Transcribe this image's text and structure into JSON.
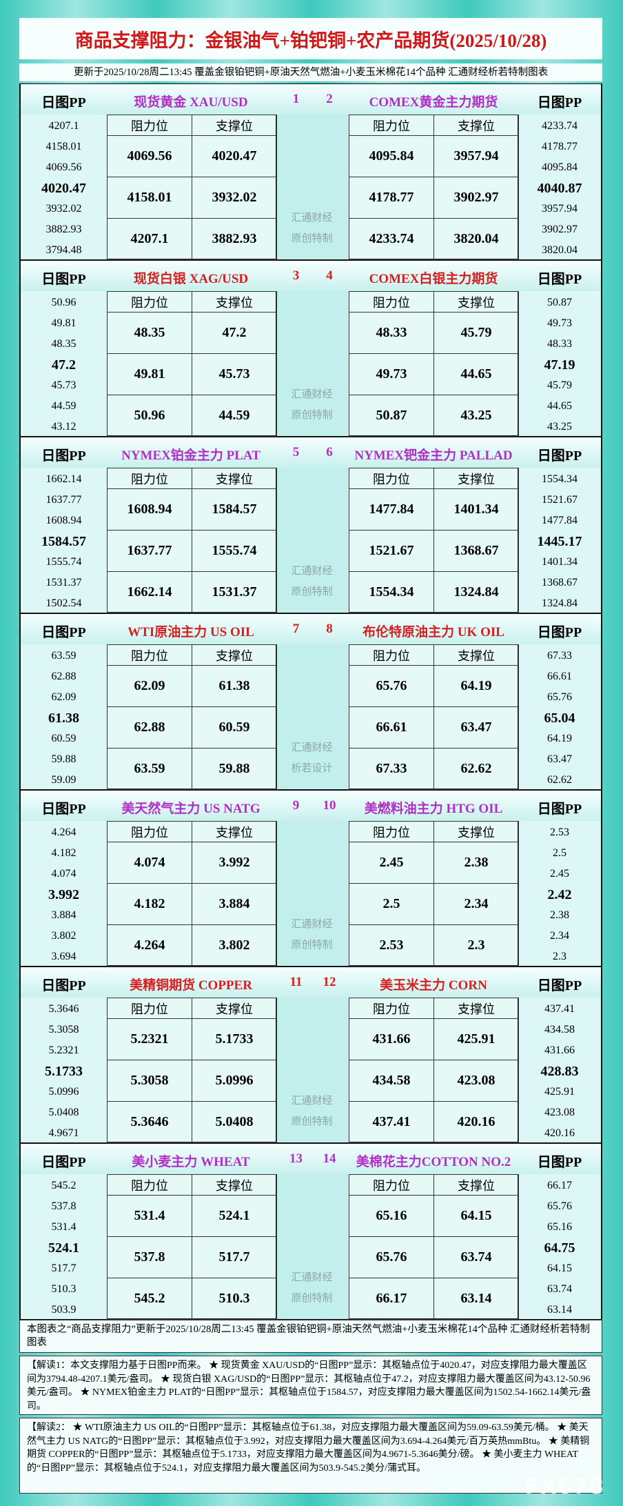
{
  "header": {
    "title": "商品支撑阻力：金银油气+铂钯铜+农产品期货(2025/10/28)",
    "subtitle": "更新于2025/10/28周二13:45 覆盖金银铂钯铜+原油天然气燃油+小麦玉米棉花14个品种 汇通财经析若特制图表"
  },
  "blocks": [
    {
      "left": {
        "pp_label": "日图PP",
        "name": "现货黄金 XAU/USD",
        "number": "1",
        "pp": [
          "4207.1",
          "4158.01",
          "4069.56",
          "4020.47",
          "3932.02",
          "3882.93",
          "3794.48"
        ],
        "table": {
          "headers": [
            "阻力位",
            "支撑位"
          ],
          "rows": [
            [
              "4069.56",
              "4020.47"
            ],
            [
              "4158.01",
              "3932.02"
            ],
            [
              "4207.1",
              "3882.93"
            ]
          ]
        }
      },
      "right": {
        "pp_label": "日图PP",
        "name": "COMEX黄金主力期货",
        "number": "2",
        "pp": [
          "4233.74",
          "4178.77",
          "4095.84",
          "4040.87",
          "3957.94",
          "3902.97",
          "3820.04"
        ],
        "table": {
          "headers": [
            "阻力位",
            "支撑位"
          ],
          "rows": [
            [
              "4095.84",
              "3957.94"
            ],
            [
              "4178.77",
              "3902.97"
            ],
            [
              "4233.74",
              "3820.04"
            ]
          ]
        }
      },
      "stamp": [
        "汇通财经",
        "原创特制"
      ]
    },
    {
      "left": {
        "pp_label": "日图PP",
        "name": "现货白银 XAG/USD",
        "number": "3",
        "pp": [
          "50.96",
          "49.81",
          "48.35",
          "47.2",
          "45.73",
          "44.59",
          "43.12"
        ],
        "table": {
          "headers": [
            "阻力位",
            "支撑位"
          ],
          "rows": [
            [
              "48.35",
              "47.2"
            ],
            [
              "49.81",
              "45.73"
            ],
            [
              "50.96",
              "44.59"
            ]
          ]
        }
      },
      "right": {
        "pp_label": "日图PP",
        "name": "COMEX白银主力期货",
        "number": "4",
        "pp": [
          "50.87",
          "49.73",
          "48.33",
          "47.19",
          "45.79",
          "44.65",
          "43.25"
        ],
        "table": {
          "headers": [
            "阻力位",
            "支撑位"
          ],
          "rows": [
            [
              "48.33",
              "45.79"
            ],
            [
              "49.73",
              "44.65"
            ],
            [
              "50.87",
              "43.25"
            ]
          ]
        }
      },
      "stamp": [
        "汇通财经",
        "原创特制"
      ]
    },
    {
      "left": {
        "pp_label": "日图PP",
        "name": "NYMEX铂金主力 PLAT",
        "number": "5",
        "pp": [
          "1662.14",
          "1637.77",
          "1608.94",
          "1584.57",
          "1555.74",
          "1531.37",
          "1502.54"
        ],
        "table": {
          "headers": [
            "阻力位",
            "支撑位"
          ],
          "rows": [
            [
              "1608.94",
              "1584.57"
            ],
            [
              "1637.77",
              "1555.74"
            ],
            [
              "1662.14",
              "1531.37"
            ]
          ]
        }
      },
      "right": {
        "pp_label": "日图PP",
        "name": "NYMEX钯金主力 PALLAD",
        "number": "6",
        "pp": [
          "1554.34",
          "1521.67",
          "1477.84",
          "1445.17",
          "1401.34",
          "1368.67",
          "1324.84"
        ],
        "table": {
          "headers": [
            "阻力位",
            "支撑位"
          ],
          "rows": [
            [
              "1477.84",
              "1401.34"
            ],
            [
              "1521.67",
              "1368.67"
            ],
            [
              "1554.34",
              "1324.84"
            ]
          ]
        }
      },
      "stamp": [
        "汇通财经",
        "原创特制"
      ]
    },
    {
      "left": {
        "pp_label": "日图PP",
        "name": "WTI原油主力 US OIL",
        "number": "7",
        "pp": [
          "63.59",
          "62.88",
          "62.09",
          "61.38",
          "60.59",
          "59.88",
          "59.09"
        ],
        "table": {
          "headers": [
            "阻力位",
            "支撑位"
          ],
          "rows": [
            [
              "62.09",
              "61.38"
            ],
            [
              "62.88",
              "60.59"
            ],
            [
              "63.59",
              "59.88"
            ]
          ]
        }
      },
      "right": {
        "pp_label": "日图PP",
        "name": "布伦特原油主力 UK OIL",
        "number": "8",
        "pp": [
          "67.33",
          "66.61",
          "65.76",
          "65.04",
          "64.19",
          "63.47",
          "62.62"
        ],
        "table": {
          "headers": [
            "阻力位",
            "支撑位"
          ],
          "rows": [
            [
              "65.76",
              "64.19"
            ],
            [
              "66.61",
              "63.47"
            ],
            [
              "67.33",
              "62.62"
            ]
          ]
        }
      },
      "stamp": [
        "汇通财经",
        "析若设计"
      ]
    },
    {
      "left": {
        "pp_label": "日图PP",
        "name": "美天然气主力 US NATG",
        "number": "9",
        "pp": [
          "4.264",
          "4.182",
          "4.074",
          "3.992",
          "3.884",
          "3.802",
          "3.694"
        ],
        "table": {
          "headers": [
            "阻力位",
            "支撑位"
          ],
          "rows": [
            [
              "4.074",
              "3.992"
            ],
            [
              "4.182",
              "3.884"
            ],
            [
              "4.264",
              "3.802"
            ]
          ]
        }
      },
      "right": {
        "pp_label": "日图PP",
        "name": "美燃料油主力 HTG OIL",
        "number": "10",
        "pp": [
          "2.53",
          "2.5",
          "2.45",
          "2.42",
          "2.38",
          "2.34",
          "2.3"
        ],
        "table": {
          "headers": [
            "阻力位",
            "支撑位"
          ],
          "rows": [
            [
              "2.45",
              "2.38"
            ],
            [
              "2.5",
              "2.34"
            ],
            [
              "2.53",
              "2.3"
            ]
          ]
        }
      },
      "stamp": [
        "汇通财经",
        "原创特制"
      ]
    },
    {
      "left": {
        "pp_label": "日图PP",
        "name": "美精铜期货 COPPER",
        "number": "11",
        "pp": [
          "5.3646",
          "5.3058",
          "5.2321",
          "5.1733",
          "5.0996",
          "5.0408",
          "4.9671"
        ],
        "table": {
          "headers": [
            "阻力位",
            "支撑位"
          ],
          "rows": [
            [
              "5.2321",
              "5.1733"
            ],
            [
              "5.3058",
              "5.0996"
            ],
            [
              "5.3646",
              "5.0408"
            ]
          ]
        }
      },
      "right": {
        "pp_label": "日图PP",
        "name": "美玉米主力 CORN",
        "number": "12",
        "pp": [
          "437.41",
          "434.58",
          "431.66",
          "428.83",
          "425.91",
          "423.08",
          "420.16"
        ],
        "table": {
          "headers": [
            "阻力位",
            "支撑位"
          ],
          "rows": [
            [
              "431.66",
              "425.91"
            ],
            [
              "434.58",
              "423.08"
            ],
            [
              "437.41",
              "420.16"
            ]
          ]
        }
      },
      "stamp": [
        "汇通财经",
        "原创特制"
      ]
    },
    {
      "left": {
        "pp_label": "日图PP",
        "name": "美小麦主力 WHEAT",
        "number": "13",
        "pp": [
          "545.2",
          "537.8",
          "531.4",
          "524.1",
          "517.7",
          "510.3",
          "503.9"
        ],
        "table": {
          "headers": [
            "阻力位",
            "支撑位"
          ],
          "rows": [
            [
              "531.4",
              "524.1"
            ],
            [
              "537.8",
              "517.7"
            ],
            [
              "545.2",
              "510.3"
            ]
          ]
        }
      },
      "right": {
        "pp_label": "日图PP",
        "name": "美棉花主力COTTON NO.2",
        "number": "14",
        "pp": [
          "66.17",
          "65.76",
          "65.16",
          "64.75",
          "64.15",
          "63.74",
          "63.14"
        ],
        "table": {
          "headers": [
            "阻力位",
            "支撑位"
          ],
          "rows": [
            [
              "65.16",
              "64.15"
            ],
            [
              "65.76",
              "63.74"
            ],
            [
              "66.17",
              "63.14"
            ]
          ]
        }
      },
      "stamp": [
        "汇通财经",
        "原创特制"
      ]
    }
  ],
  "footer": {
    "text": "本图表之“商品支撑阻力”更新于2025/10/28周二13:45 覆盖金银铂钯铜+原油天然气燃油+小麦玉米棉花14个品种 汇通财经析若特制图表",
    "notes": [
      "【解读1：本文支撑阻力基于日图PP而来。 ★ 现货黄金 XAU/USD的“日图PP”显示：其枢轴点位于4020.47，对应支撑阻力最大覆盖区间为3794.48-4207.1美元/盎司。 ★ 现货白银 XAG/USD的“日图PP”显示：其枢轴点位于47.2，对应支撑阻力最大覆盖区间为43.12-50.96美元/盎司。 ★ NYMEX铂金主力 PLAT的“日图PP”显示：其枢轴点位于1584.57，对应支撑阻力最大覆盖区间为1502.54-1662.14美元/盎司。",
      "【解读2： ★ WTI原油主力 US OIL的“日图PP”显示：其枢轴点位于61.38，对应支撑阻力最大覆盖区间为59.09-63.59美元/桶。 ★ 美天然气主力 US NATG的“日图PP”显示：其枢轴点位于3.992，对应支撑阻力最大覆盖区间为3.694-4.264美元/百万英热mmBtu。 ★ 美精铜期货 COPPER的“日图PP”显示：其枢轴点位于5.1733，对应支撑阻力最大覆盖区间为4.9671-5.3646美分/磅。 ★ 美小麦主力 WHEAT的“日图PP”显示：其枢轴点位于524.1，对应支撑阻力最大覆盖区间为503.9-545.2美分/蒲式耳。"
    ]
  },
  "watermark": "FX678"
}
